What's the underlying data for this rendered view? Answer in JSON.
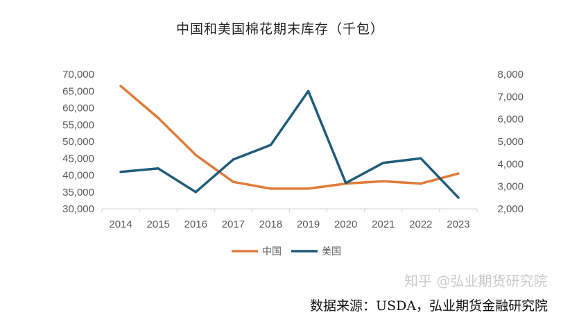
{
  "chart_data": {
    "type": "line",
    "title": "中国和美国棉花期末库存（千包）",
    "categories": [
      "2014",
      "2015",
      "2016",
      "2017",
      "2018",
      "2019",
      "2020",
      "2021",
      "2022",
      "2023"
    ],
    "series": [
      {
        "name": "中国",
        "axis": "left",
        "color": "#E07B39",
        "values": [
          66500,
          57000,
          46000,
          38000,
          36000,
          36000,
          37500,
          38200,
          37500,
          40500
        ]
      },
      {
        "name": "美国",
        "axis": "right",
        "color": "#1F5C7A",
        "values": [
          3650,
          3800,
          2750,
          4200,
          4850,
          7250,
          3150,
          4050,
          4250,
          2500
        ]
      }
    ],
    "y_left": {
      "ylim": [
        30000,
        70000
      ],
      "ticks": [
        "30,000",
        "35,000",
        "40,000",
        "45,000",
        "50,000",
        "55,000",
        "60,000",
        "65,000",
        "70,000"
      ]
    },
    "y_right": {
      "ylim": [
        2000,
        8000
      ],
      "ticks": [
        "2,000",
        "3,000",
        "4,000",
        "5,000",
        "6,000",
        "7,000",
        "8,000"
      ]
    },
    "grid": false,
    "legend_position": "bottom-center",
    "source": "数据来源：USDA，弘业期货金融研究院",
    "watermark": "知乎 @弘业期货研究院"
  }
}
